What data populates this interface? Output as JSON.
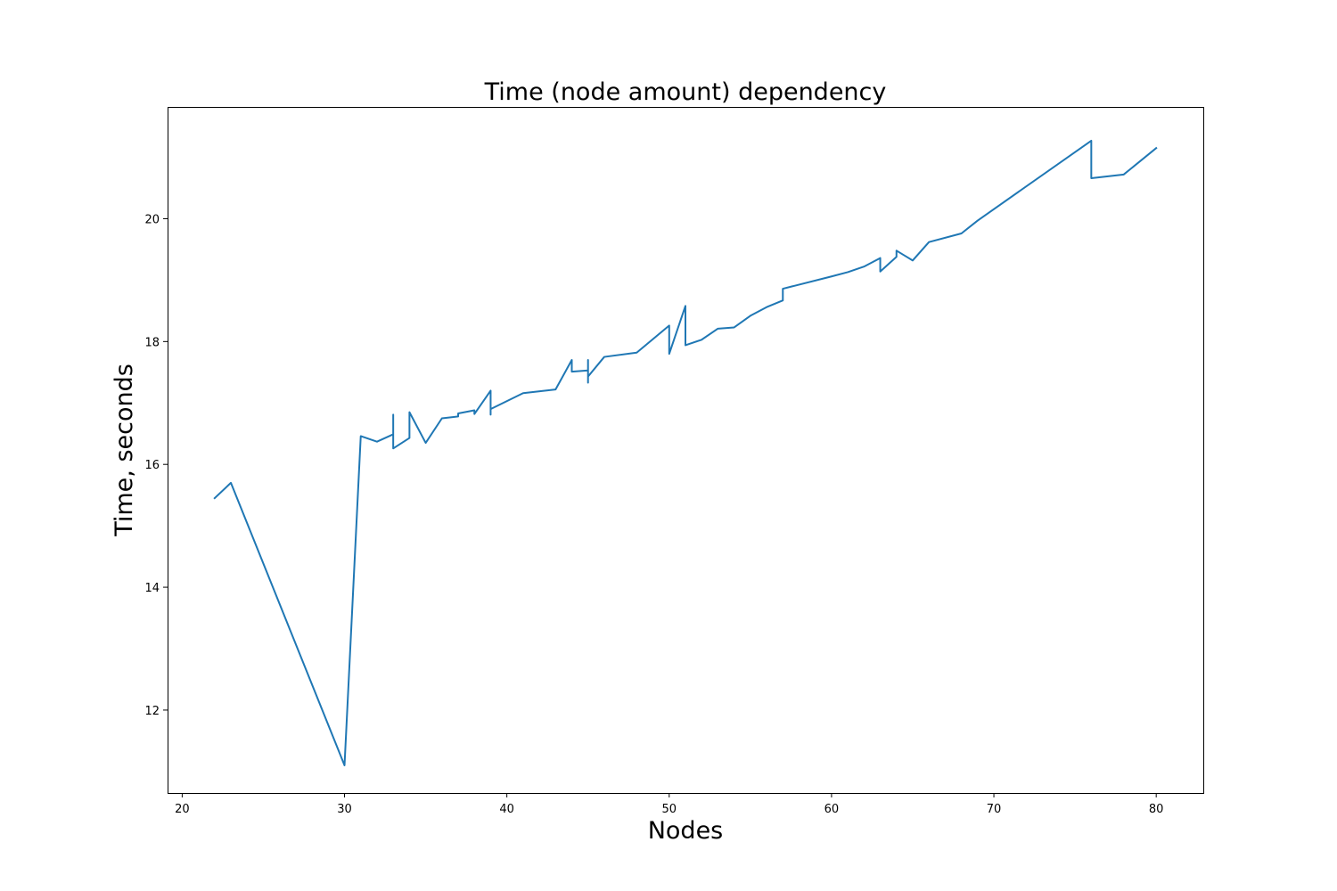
{
  "chart_data": {
    "type": "line",
    "title": "Time (node amount) dependency",
    "xlabel": "Nodes",
    "ylabel": "Time, seconds",
    "xlim": [
      19.1,
      82.9
    ],
    "ylim": [
      10.65,
      21.82
    ],
    "xticks": [
      20,
      30,
      40,
      50,
      60,
      70,
      80
    ],
    "yticks": [
      12,
      14,
      16,
      18,
      20
    ],
    "grid": false,
    "legend": "none",
    "line_color": "#1f77b4",
    "series": [
      {
        "x": [
          22,
          23,
          30,
          31,
          32,
          33,
          33,
          33,
          34,
          34,
          35,
          36,
          37,
          37,
          38,
          38,
          39,
          39,
          39,
          41,
          43,
          44,
          44,
          45,
          45,
          45,
          45,
          46,
          48,
          50,
          50,
          51,
          51,
          52,
          53,
          54,
          55,
          56,
          57,
          57,
          60,
          61,
          62,
          63,
          63,
          64,
          64,
          65,
          66,
          68,
          69,
          76,
          76,
          78,
          80
        ],
        "y": [
          15.45,
          15.7,
          11.1,
          16.46,
          16.37,
          16.49,
          16.81,
          16.26,
          16.43,
          16.85,
          16.35,
          16.75,
          16.78,
          16.83,
          16.88,
          16.82,
          17.2,
          16.81,
          16.9,
          17.16,
          17.22,
          17.7,
          17.51,
          17.53,
          17.7,
          17.33,
          17.43,
          17.75,
          17.82,
          18.26,
          17.8,
          18.58,
          17.94,
          18.03,
          18.21,
          18.23,
          18.42,
          18.56,
          18.67,
          18.86,
          19.06,
          19.13,
          19.22,
          19.36,
          19.14,
          19.38,
          19.48,
          19.32,
          19.62,
          19.76,
          19.97,
          21.27,
          20.66,
          20.72,
          21.15
        ]
      }
    ]
  }
}
